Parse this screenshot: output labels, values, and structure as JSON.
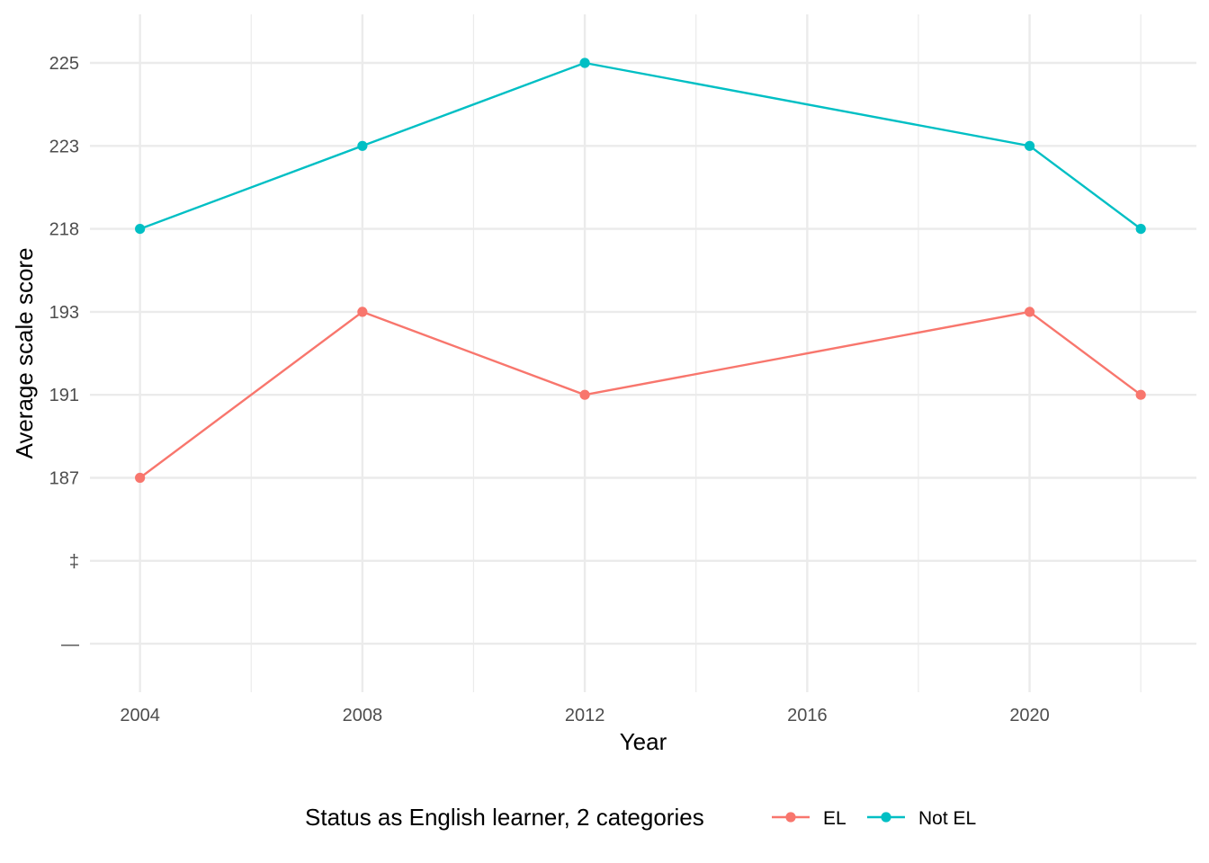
{
  "chart_data": {
    "type": "line",
    "xlabel": "Year",
    "ylabel": "Average scale score",
    "x_ticks": [
      2004,
      2008,
      2012,
      2016,
      2020
    ],
    "xlim": [
      2003.1,
      2023.0
    ],
    "y_categories": [
      "—",
      "‡",
      "187",
      "191",
      "193",
      "218",
      "223",
      "225"
    ],
    "grid": true,
    "legend": {
      "title": "Status as English learner, 2 categories",
      "position": "bottom"
    },
    "series": [
      {
        "name": "EL",
        "color": "#F8766D",
        "points": [
          {
            "x": 2004,
            "y": "187"
          },
          {
            "x": 2008,
            "y": "193"
          },
          {
            "x": 2012,
            "y": "191"
          },
          {
            "x": 2020,
            "y": "193"
          },
          {
            "x": 2022,
            "y": "191"
          }
        ]
      },
      {
        "name": "Not EL",
        "color": "#00BFC4",
        "points": [
          {
            "x": 2004,
            "y": "218"
          },
          {
            "x": 2008,
            "y": "223"
          },
          {
            "x": 2012,
            "y": "225"
          },
          {
            "x": 2020,
            "y": "223"
          },
          {
            "x": 2022,
            "y": "218"
          }
        ]
      }
    ]
  }
}
